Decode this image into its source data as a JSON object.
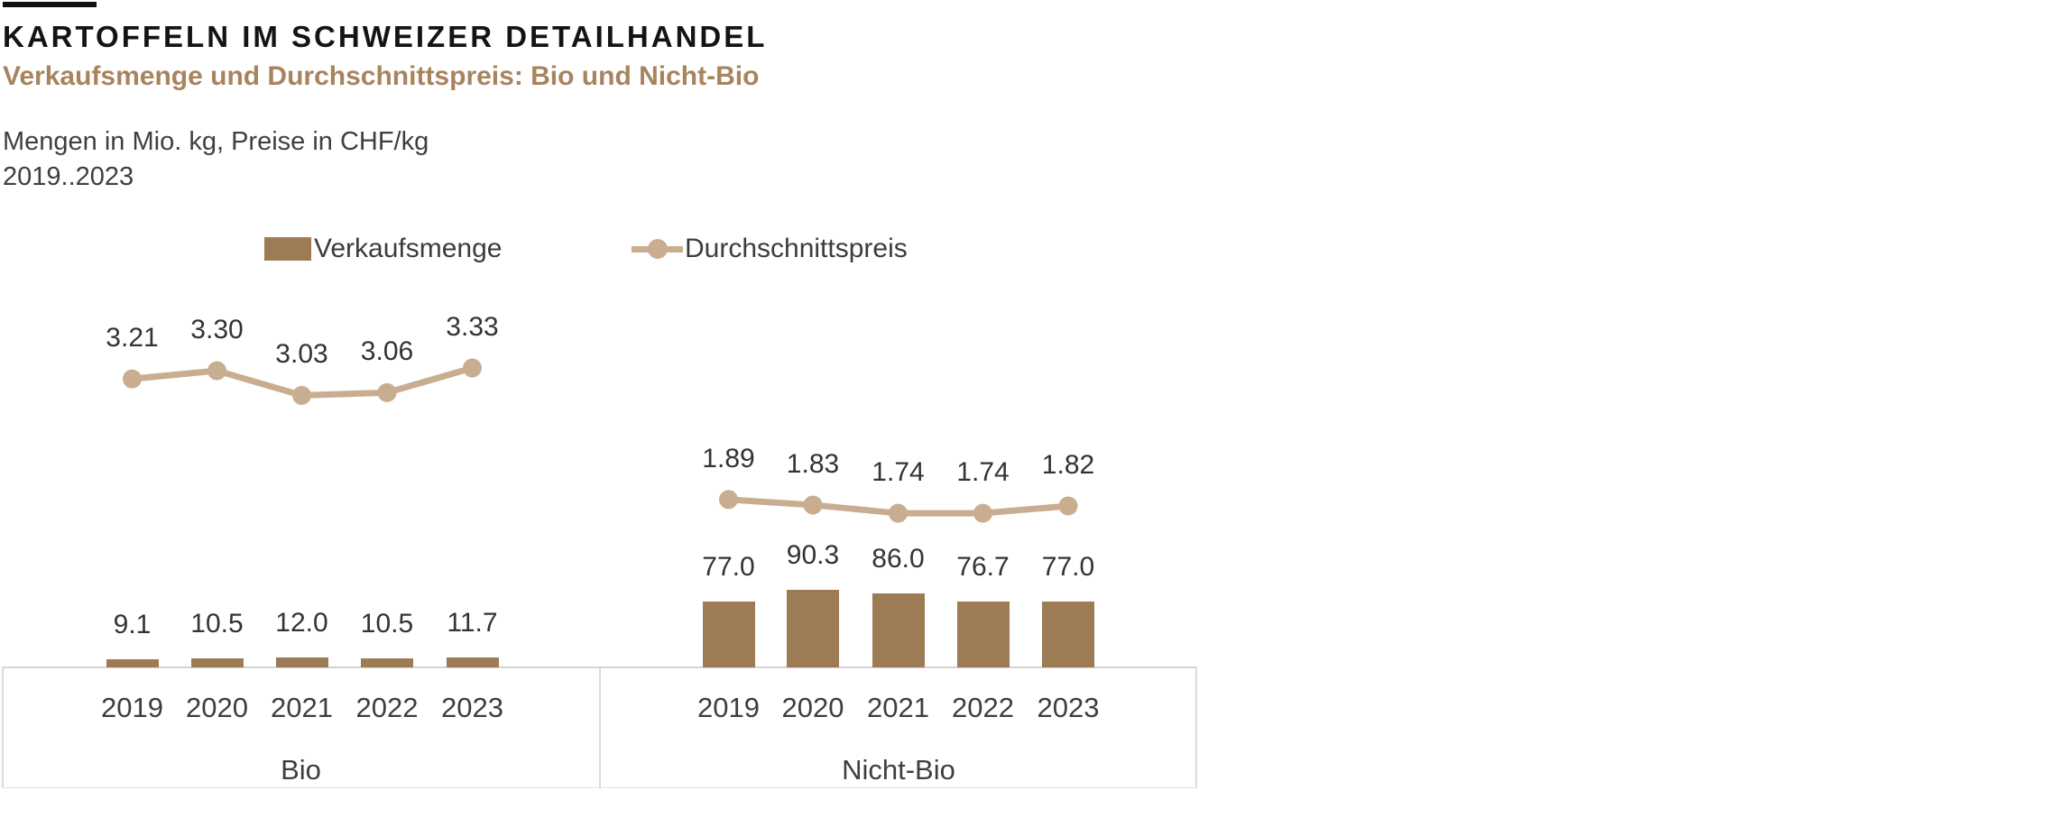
{
  "header": {
    "title": "KARTOFFELN IM SCHWEIZER DETAILHANDEL",
    "subtitle": "Verkaufsmenge und Durchschnittspreis: Bio und Nicht-Bio",
    "unit_note": "Mengen in Mio. kg, Preise in CHF/kg",
    "period_note": "2019..2023"
  },
  "legend": {
    "items": [
      {
        "label": "Verkaufsmenge",
        "swatch": "bar-swatch-icon"
      },
      {
        "label": "Durchschnittspreis",
        "swatch": "line-swatch-icon"
      }
    ]
  },
  "colors": {
    "bar": "#9D7B55",
    "line": "#C9AD90",
    "title": "#141414",
    "subtitle": "#A8845E",
    "text": "#3E3E3E",
    "value_label": "#333333",
    "frame": "#DBDBDB"
  },
  "chart_data": {
    "type": "bar",
    "subtype": "grouped bar panels with overlaid line series (secondary axis), value labels shown, axes hidden",
    "title": "KARTOFFELN IM SCHWEIZER DETAILHANDEL",
    "subtitle": "Verkaufsmenge und Durchschnittspreis: Bio und Nicht-Bio",
    "units": "Mengen in Mio. kg, Preise in CHF/kg",
    "period": "2019..2023",
    "legend_position": "top",
    "grid": false,
    "panels": [
      {
        "name": "Bio",
        "categories": [
          "2019",
          "2020",
          "2021",
          "2022",
          "2023"
        ],
        "series": [
          {
            "name": "Verkaufsmenge",
            "type": "bar",
            "unit": "Mio. kg",
            "values": [
              9.1,
              10.5,
              12.0,
              10.5,
              11.7
            ],
            "labels": [
              "9.1",
              "10.5",
              "12.0",
              "10.5",
              "11.7"
            ]
          },
          {
            "name": "Durchschnittspreis",
            "type": "line",
            "unit": "CHF/kg",
            "values": [
              3.21,
              3.3,
              3.03,
              3.06,
              3.33
            ],
            "labels": [
              "3.21",
              "3.30",
              "3.03",
              "3.06",
              "3.33"
            ]
          }
        ]
      },
      {
        "name": "Nicht-Bio",
        "categories": [
          "2019",
          "2020",
          "2021",
          "2022",
          "2023"
        ],
        "series": [
          {
            "name": "Verkaufsmenge",
            "type": "bar",
            "unit": "Mio. kg",
            "values": [
              77.0,
              90.3,
              86.0,
              76.7,
              77.0
            ],
            "labels": [
              "77.0",
              "90.3",
              "86.0",
              "76.7",
              "77.0"
            ]
          },
          {
            "name": "Durchschnittspreis",
            "type": "line",
            "unit": "CHF/kg",
            "values": [
              1.89,
              1.83,
              1.74,
              1.74,
              1.82
            ],
            "labels": [
              "1.89",
              "1.83",
              "1.74",
              "1.74",
              "1.82"
            ]
          }
        ]
      }
    ]
  }
}
